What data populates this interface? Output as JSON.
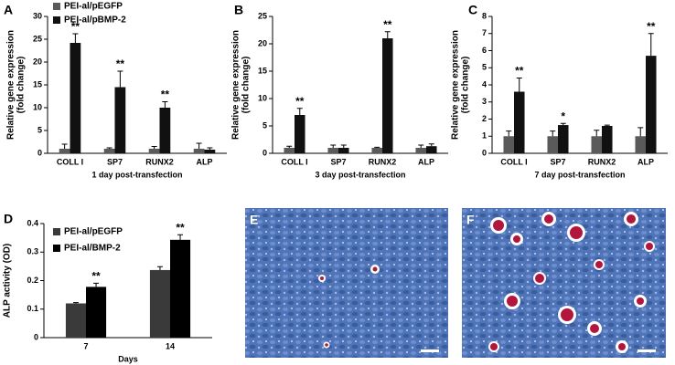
{
  "chart_data": [
    {
      "type": "bar",
      "panel_label": "A",
      "ylabel": [
        "Relative gene expression",
        "(fold change)"
      ],
      "xlabel": "1 day post-transfection",
      "categories": [
        "COLL I",
        "SP7",
        "RUNX2",
        "ALP"
      ],
      "ylim": [
        0,
        30
      ],
      "yticks": [
        0,
        5,
        10,
        15,
        20,
        25,
        30
      ],
      "legend": "top-left",
      "series": [
        {
          "name": "PEI-al/pEGFP",
          "color": "#5a5a5a",
          "values": [
            1,
            1,
            1,
            1
          ],
          "errors": [
            1,
            0.2,
            0.5,
            1.2
          ]
        },
        {
          "name": "PEI-al/pBMP-2",
          "color": "#111111",
          "values": [
            24.2,
            14.5,
            10,
            0.8
          ],
          "errors": [
            2,
            3.5,
            1.3,
            0.4
          ],
          "annotations": [
            "**",
            "**",
            "**",
            null
          ]
        }
      ]
    },
    {
      "type": "bar",
      "panel_label": "B",
      "ylabel": [
        "Relative gene expression",
        "(fold change)"
      ],
      "xlabel": "3 day post-transfection",
      "categories": [
        "COLL I",
        "SP7",
        "RUNX2",
        "ALP"
      ],
      "ylim": [
        0,
        25
      ],
      "yticks": [
        0,
        5,
        10,
        15,
        20,
        25
      ],
      "series": [
        {
          "color": "#5a5a5a",
          "values": [
            1,
            1,
            1,
            1
          ],
          "errors": [
            0.3,
            0.5,
            0.1,
            0.5
          ]
        },
        {
          "color": "#111111",
          "values": [
            7,
            1,
            21,
            1.3
          ],
          "errors": [
            1.2,
            0.5,
            1.2,
            0.4
          ],
          "annotations": [
            "**",
            null,
            "**",
            null
          ]
        }
      ]
    },
    {
      "type": "bar",
      "panel_label": "C",
      "ylabel": [
        "Relative gene expression",
        "(fold change)"
      ],
      "xlabel": "7 day post-transfection",
      "categories": [
        "COLL I",
        "SP7",
        "RUNX2",
        "ALP"
      ],
      "ylim": [
        0,
        8
      ],
      "yticks": [
        0,
        1,
        2,
        3,
        4,
        5,
        6,
        7,
        8
      ],
      "series": [
        {
          "color": "#5a5a5a",
          "values": [
            1,
            1,
            1,
            1
          ],
          "errors": [
            0.3,
            0.3,
            0.35,
            0.5
          ]
        },
        {
          "color": "#111111",
          "values": [
            3.6,
            1.65,
            1.6,
            5.7
          ],
          "errors": [
            0.8,
            0.1,
            0.05,
            1.3
          ],
          "annotations": [
            "**",
            "*",
            null,
            "**"
          ]
        }
      ]
    },
    {
      "type": "bar",
      "panel_label": "D",
      "ylabel": [
        "ALP activity (OD)"
      ],
      "xlabel": "Days",
      "categories": [
        "7",
        "14"
      ],
      "ylim": [
        0,
        0.4
      ],
      "yticks": [
        0,
        0.1,
        0.2,
        0.3,
        0.4
      ],
      "legend": "top-left",
      "series": [
        {
          "name": "PEI-al/pEGFP",
          "color": "#3a3a3a",
          "values": [
            0.12,
            0.237
          ],
          "errors": [
            0.003,
            0.012
          ]
        },
        {
          "name": "PEI-al/BMP-2",
          "color": "#000000",
          "values": [
            0.178,
            0.343
          ],
          "errors": [
            0.013,
            0.018
          ],
          "annotations": [
            "**",
            "**"
          ]
        }
      ]
    }
  ],
  "images": [
    {
      "label": "E"
    },
    {
      "label": "F"
    }
  ]
}
